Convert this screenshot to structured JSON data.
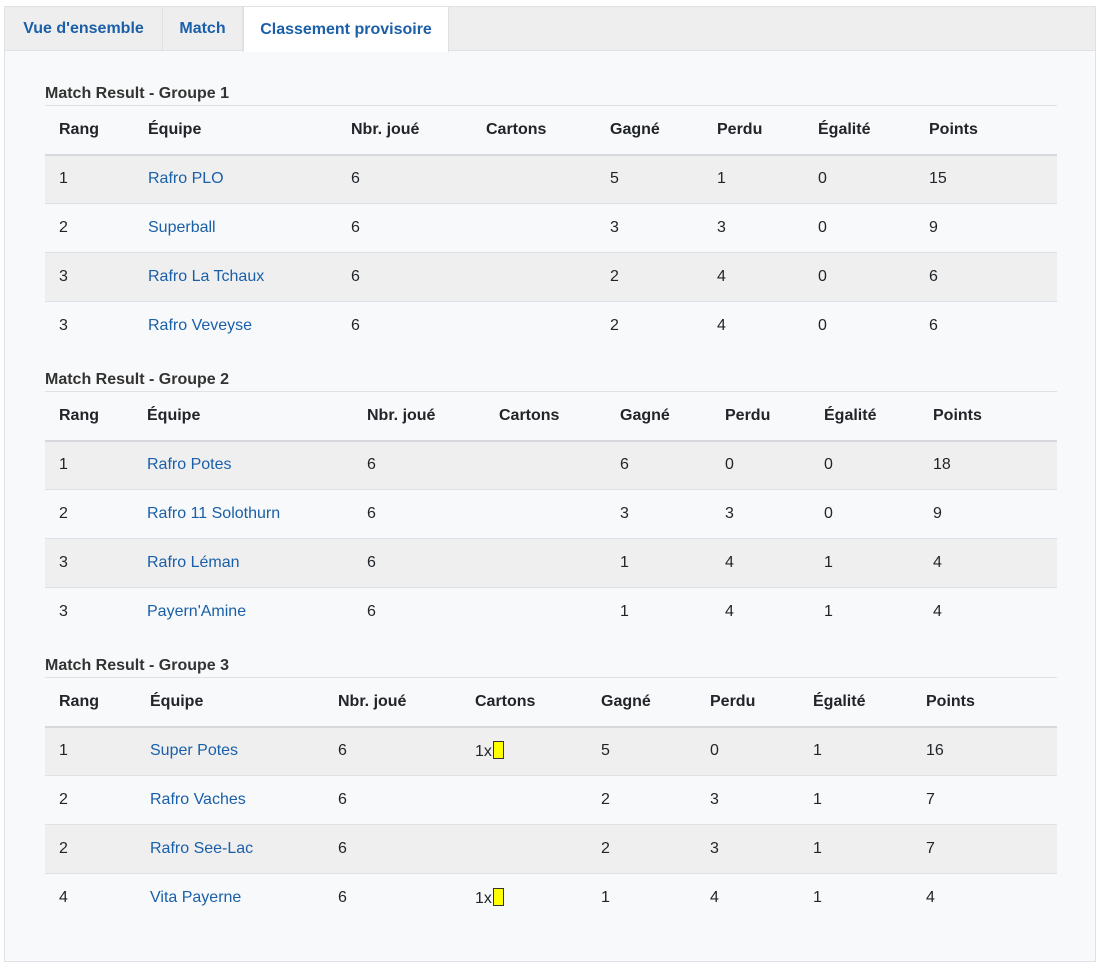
{
  "tabs": [
    "Vue d'ensemble",
    "Match",
    "Classement provisoire"
  ],
  "headers": [
    "Rang",
    "Équipe",
    "Nbr. joué",
    "Cartons",
    "Gagné",
    "Perdu",
    "Égalité",
    "Points"
  ],
  "colors": {
    "link": "#1a5fa8",
    "yellow_card": "#ffff00"
  },
  "groups": [
    {
      "title": "Match Result - Groupe 1",
      "rows": [
        {
          "rank": "1",
          "team": "Rafro PLO",
          "played": "6",
          "cards": "",
          "won": "5",
          "lost": "1",
          "draw": "0",
          "points": "15"
        },
        {
          "rank": "2",
          "team": "Superball",
          "played": "6",
          "cards": "",
          "won": "3",
          "lost": "3",
          "draw": "0",
          "points": "9"
        },
        {
          "rank": "3",
          "team": "Rafro La Tchaux",
          "played": "6",
          "cards": "",
          "won": "2",
          "lost": "4",
          "draw": "0",
          "points": "6"
        },
        {
          "rank": "3",
          "team": "Rafro Veveyse",
          "played": "6",
          "cards": "",
          "won": "2",
          "lost": "4",
          "draw": "0",
          "points": "6"
        }
      ]
    },
    {
      "title": "Match Result - Groupe 2",
      "rows": [
        {
          "rank": "1",
          "team": "Rafro Potes",
          "played": "6",
          "cards": "",
          "won": "6",
          "lost": "0",
          "draw": "0",
          "points": "18"
        },
        {
          "rank": "2",
          "team": "Rafro 11 Solothurn",
          "played": "6",
          "cards": "",
          "won": "3",
          "lost": "3",
          "draw": "0",
          "points": "9"
        },
        {
          "rank": "3",
          "team": "Rafro Léman",
          "played": "6",
          "cards": "",
          "won": "1",
          "lost": "4",
          "draw": "1",
          "points": "4"
        },
        {
          "rank": "3",
          "team": "Payern'Amine",
          "played": "6",
          "cards": "",
          "won": "1",
          "lost": "4",
          "draw": "1",
          "points": "4"
        }
      ]
    },
    {
      "title": "Match Result - Groupe 3",
      "rows": [
        {
          "rank": "1",
          "team": "Super Potes",
          "played": "6",
          "cards": "1x",
          "yellow_card": true,
          "won": "5",
          "lost": "0",
          "draw": "1",
          "points": "16"
        },
        {
          "rank": "2",
          "team": "Rafro Vaches",
          "played": "6",
          "cards": "",
          "won": "2",
          "lost": "3",
          "draw": "1",
          "points": "7"
        },
        {
          "rank": "2",
          "team": "Rafro See-Lac",
          "played": "6",
          "cards": "",
          "won": "2",
          "lost": "3",
          "draw": "1",
          "points": "7"
        },
        {
          "rank": "4",
          "team": "Vita Payerne",
          "played": "6",
          "cards": "1x",
          "yellow_card": true,
          "won": "1",
          "lost": "4",
          "draw": "1",
          "points": "4"
        }
      ]
    }
  ]
}
